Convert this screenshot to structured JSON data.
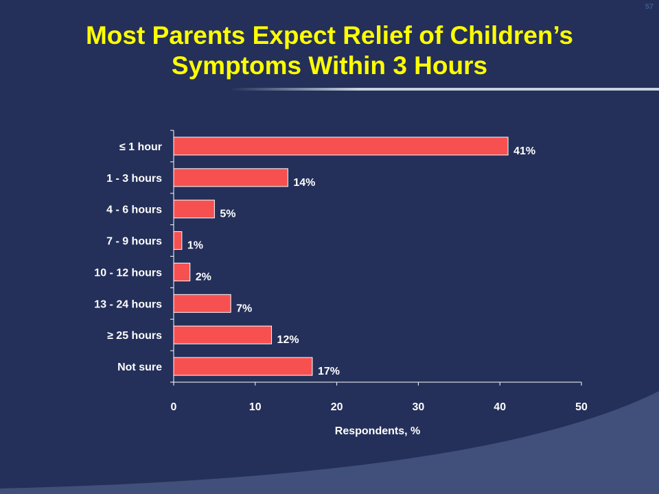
{
  "slide": {
    "number": "57"
  },
  "title": {
    "line1": "Most Parents Expect Relief of Children’s",
    "line2": "Symptoms Within 3 Hours"
  },
  "colors": {
    "background": "#243059",
    "title": "#ffff00",
    "bar": "#f75050",
    "text": "#ffffff",
    "swoosh": "#41507a"
  },
  "chart_data": {
    "type": "bar",
    "orientation": "horizontal",
    "title": "",
    "xlabel": "Respondents, %",
    "ylabel": "",
    "xlim": [
      0,
      50
    ],
    "xticks": [
      0,
      10,
      20,
      30,
      40,
      50
    ],
    "grid": false,
    "legend": "none",
    "categories": [
      "≤ 1 hour",
      "1 - 3 hours",
      "4 - 6 hours",
      "7 - 9 hours",
      "10 - 12 hours",
      "13 - 24 hours",
      "≥ 25 hours",
      "Not sure"
    ],
    "values": [
      41,
      14,
      5,
      1,
      2,
      7,
      12,
      17
    ],
    "data_labels": [
      "41%",
      "14%",
      "5%",
      "1%",
      "2%",
      "7%",
      "12%",
      "17%"
    ]
  }
}
